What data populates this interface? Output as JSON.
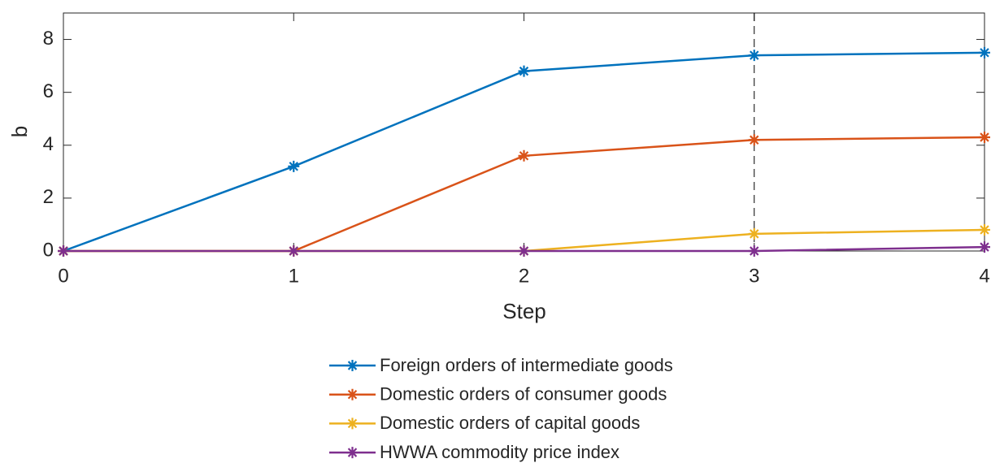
{
  "chart_data": {
    "type": "line",
    "x": [
      0,
      1,
      2,
      3,
      4
    ],
    "xlabel": "Step",
    "ylabel": "b",
    "xlim": [
      0,
      4
    ],
    "xticks": [
      0,
      1,
      2,
      3,
      4
    ],
    "ylim": [
      0,
      9
    ],
    "yticks": [
      0,
      2,
      4,
      6,
      8
    ],
    "vline": 3,
    "series": [
      {
        "name": "Foreign orders of intermediate goods",
        "color": "#0072BD",
        "values": [
          0,
          3.2,
          6.8,
          7.4,
          7.5
        ]
      },
      {
        "name": "Domestic orders of consumer goods",
        "color": "#D95319",
        "values": [
          0,
          0,
          3.6,
          4.2,
          4.3
        ]
      },
      {
        "name": "Domestic orders of capital goods",
        "color": "#EDB120",
        "values": [
          0,
          0,
          0,
          0.65,
          0.8
        ]
      },
      {
        "name": "HWWA commodity price index",
        "color": "#7E2F8E",
        "values": [
          0,
          0,
          0,
          0,
          0.15
        ]
      }
    ]
  }
}
